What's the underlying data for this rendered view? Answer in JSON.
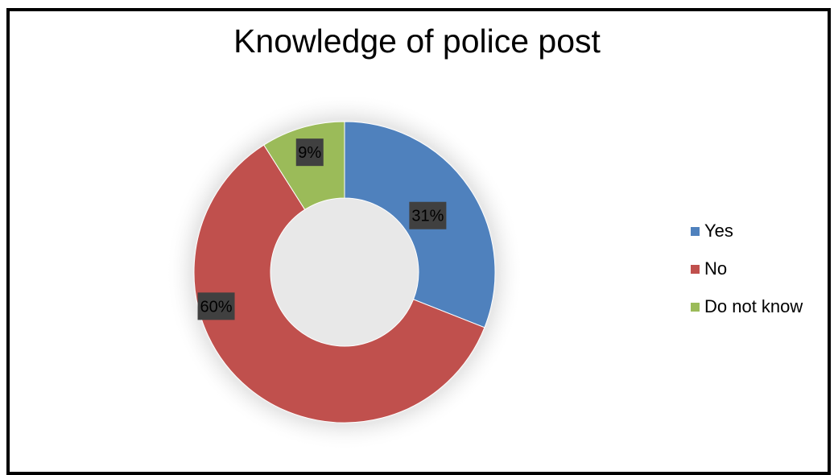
{
  "chart_data": {
    "type": "pie",
    "title": "Knowledge of police post",
    "categories": [
      "Yes",
      "No",
      "Do not know"
    ],
    "values": [
      31,
      60,
      9
    ],
    "value_labels": [
      "31%",
      "60%",
      "9%"
    ],
    "colors": [
      "#4f81bd",
      "#c0504d",
      "#9bbb59"
    ],
    "legend_position": "right",
    "donut": true
  }
}
